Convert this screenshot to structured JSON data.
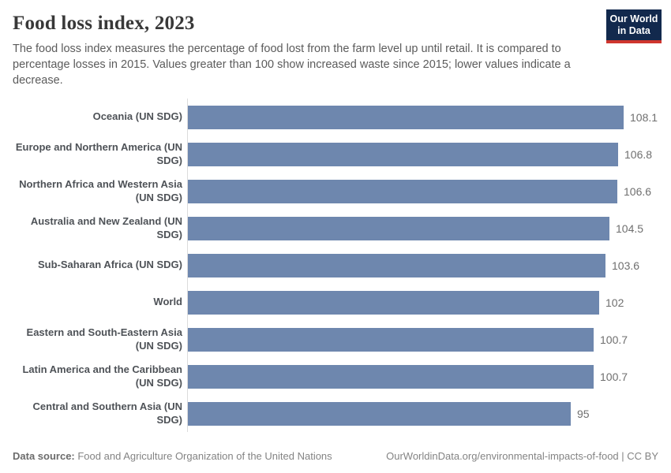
{
  "header": {
    "title": "Food loss index, 2023",
    "logo": {
      "line1": "Our World",
      "line2": "in Data",
      "bg_color": "#12294d",
      "accent_color": "#cf352e"
    }
  },
  "subtitle": "The food loss index measures the percentage of food lost from the farm level up until retail. It is compared to percentage losses in 2015. Values greater than 100 show increased waste since 2015; lower values indicate a decrease.",
  "chart_data": {
    "type": "bar",
    "orientation": "horizontal",
    "title": "Food loss index, 2023",
    "categories": [
      "Oceania (UN SDG)",
      "Europe and Northern America (UN SDG)",
      "Northern Africa and Western Asia (UN SDG)",
      "Australia and New Zealand (UN SDG)",
      "Sub-Saharan Africa (UN SDG)",
      "World",
      "Eastern and South-Eastern Asia (UN SDG)",
      "Latin America and the Caribbean (UN SDG)",
      "Central and Southern Asia (UN SDG)"
    ],
    "values": [
      108.1,
      106.8,
      106.6,
      104.5,
      103.6,
      102,
      100.7,
      100.7,
      95
    ],
    "value_labels": [
      "108.1",
      "106.8",
      "106.6",
      "104.5",
      "103.6",
      "102",
      "100.7",
      "100.7",
      "95"
    ],
    "xlim": [
      0,
      108.1
    ],
    "bar_color": "#6e87ae",
    "axis_line_color": "#dcdcdc",
    "grid": false,
    "legend": "none"
  },
  "footer": {
    "datasource_label": "Data source:",
    "datasource_text": " Food and Agriculture Organization of the United Nations",
    "link_text": "OurWorldinData.org/environmental-impacts-of-food | CC BY"
  }
}
